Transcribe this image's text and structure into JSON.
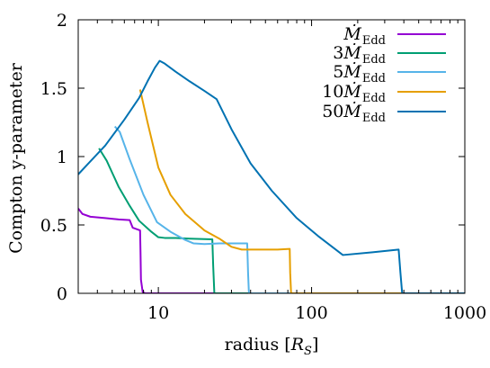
{
  "chart_data": {
    "type": "line",
    "title": "",
    "xlabel": "radius [R_S]",
    "ylabel": "Compton y-parameter",
    "x_scale": "log",
    "xlim": [
      3,
      1000
    ],
    "ylim": [
      0,
      2
    ],
    "x_ticks": [
      10,
      100,
      1000
    ],
    "y_ticks": [
      0,
      0.5,
      1,
      1.5,
      2
    ],
    "grid": false,
    "legend_position": "top-right",
    "series": [
      {
        "name": "Ṁ_Edd",
        "color": "#9400d3",
        "x": [
          3,
          3.2,
          3.6,
          4.5,
          5.5,
          6.5,
          6.8,
          7.6,
          7.65,
          7.7,
          7.9,
          8.2,
          1000
        ],
        "y": [
          0.62,
          0.58,
          0.56,
          0.55,
          0.54,
          0.535,
          0.48,
          0.46,
          0.3,
          0.1,
          0.01,
          0.0,
          0.0
        ]
      },
      {
        "name": "3Ṁ_Edd",
        "color": "#009e73",
        "x": [
          4.1,
          4.6,
          5.5,
          6.5,
          7.5,
          9,
          10,
          11,
          13,
          16,
          22.5,
          22.8,
          23.2,
          1000
        ],
        "y": [
          1.06,
          0.97,
          0.78,
          0.64,
          0.53,
          0.45,
          0.41,
          0.405,
          0.405,
          0.4,
          0.395,
          0.2,
          0.0,
          0.0
        ]
      },
      {
        "name": "5Ṁ_Edd",
        "color": "#56b4e9",
        "x": [
          5.2,
          5.6,
          6.5,
          8,
          9.8,
          12,
          15,
          17,
          20,
          25,
          38,
          38.5,
          39,
          1000
        ],
        "y": [
          1.22,
          1.18,
          0.98,
          0.72,
          0.52,
          0.45,
          0.39,
          0.365,
          0.36,
          0.365,
          0.365,
          0.15,
          0.0,
          0.0
        ]
      },
      {
        "name": "10Ṁ_Edd",
        "color": "#e69f00",
        "x": [
          7.6,
          8.5,
          10,
          12,
          15,
          20,
          25,
          30,
          35,
          45,
          60,
          72,
          72.5,
          73.5,
          1000
        ],
        "y": [
          1.49,
          1.25,
          0.92,
          0.72,
          0.58,
          0.46,
          0.4,
          0.34,
          0.32,
          0.32,
          0.32,
          0.325,
          0.15,
          0.0,
          0.0
        ]
      },
      {
        "name": "50Ṁ_Edd",
        "color": "#0072b2",
        "x": [
          3,
          3.5,
          4.5,
          6,
          7.5,
          8.5,
          9.5,
          10.2,
          11,
          13,
          16,
          20,
          24,
          30,
          40,
          55,
          80,
          110,
          160,
          250,
          370,
          380,
          390,
          1000
        ],
        "y": [
          0.87,
          0.95,
          1.08,
          1.27,
          1.43,
          1.55,
          1.65,
          1.7,
          1.68,
          1.62,
          1.55,
          1.48,
          1.42,
          1.2,
          0.95,
          0.75,
          0.55,
          0.42,
          0.28,
          0.3,
          0.32,
          0.15,
          0.0,
          0.0
        ]
      }
    ]
  }
}
